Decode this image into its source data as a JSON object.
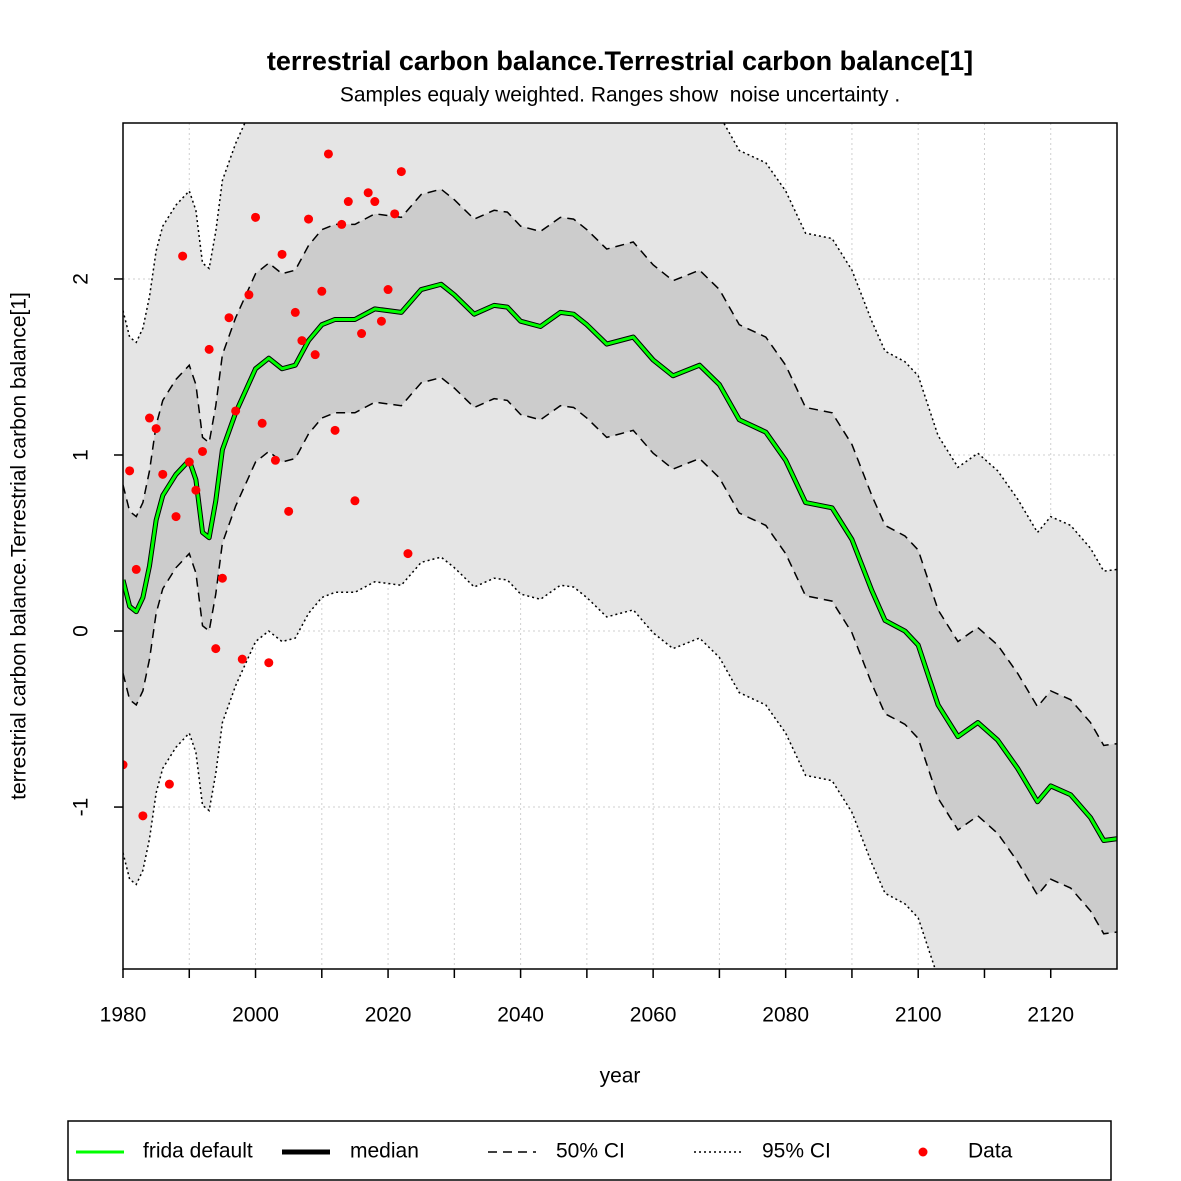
{
  "chart_data": {
    "type": "line",
    "title": "terrestrial carbon balance.Terrestrial carbon balance[1]",
    "subtitle": "Samples equaly weighted. Ranges show  noise uncertainty .",
    "xlabel": "year",
    "ylabel": "terrestrial carbon balance.Terrestrial carbon balance[1]",
    "xlim": [
      1980,
      2130
    ],
    "ylim": [
      -1.92,
      2.886
    ],
    "xticks": [
      1980,
      2000,
      2020,
      2040,
      2060,
      2080,
      2100,
      2120
    ],
    "xminor_ticks": [
      1990,
      2010,
      2030,
      2050,
      2070,
      2090,
      2110
    ],
    "yticks": [
      -1,
      0,
      1,
      2
    ],
    "grid": true,
    "x": [
      1980,
      1981,
      1982,
      1983,
      1984,
      1985,
      1986,
      1988,
      1990,
      1991,
      1992,
      1993,
      1994,
      1995,
      1997,
      2000,
      2002,
      2004,
      2006,
      2008,
      2010,
      2012,
      2015,
      2018,
      2020,
      2022,
      2025,
      2028,
      2030,
      2033,
      2036,
      2038,
      2040,
      2043,
      2046,
      2048,
      2050,
      2053,
      2057,
      2060,
      2063,
      2067,
      2070,
      2073,
      2077,
      2080,
      2083,
      2087,
      2090,
      2093,
      2095,
      2098,
      2100,
      2103,
      2106,
      2109,
      2112,
      2115,
      2118,
      2120,
      2123,
      2126,
      2128,
      2130
    ],
    "bands": [
      {
        "name": "95% CI",
        "fill": "#e5e5e5",
        "dash": "2,3",
        "upper": [
          1.82,
          1.67,
          1.64,
          1.72,
          1.9,
          2.16,
          2.3,
          2.42,
          2.5,
          2.39,
          2.09,
          2.06,
          2.27,
          2.56,
          2.77,
          3.02,
          3.08,
          3.02,
          3.04,
          3.18,
          3.27,
          3.3,
          3.3,
          3.36,
          3.35,
          3.34,
          3.47,
          3.5,
          3.44,
          3.33,
          3.38,
          3.37,
          3.29,
          3.26,
          3.34,
          3.33,
          3.27,
          3.16,
          3.2,
          3.07,
          2.98,
          3.04,
          2.93,
          2.73,
          2.66,
          2.5,
          2.26,
          2.23,
          2.05,
          1.76,
          1.59,
          1.53,
          1.45,
          1.11,
          0.93,
          1.01,
          0.91,
          0.75,
          0.56,
          0.65,
          0.6,
          0.47,
          0.34,
          0.35
        ],
        "lower": [
          -1.26,
          -1.41,
          -1.44,
          -1.36,
          -1.18,
          -0.92,
          -0.78,
          -0.66,
          -0.58,
          -0.69,
          -0.99,
          -1.02,
          -0.81,
          -0.52,
          -0.31,
          -0.06,
          0.0,
          -0.06,
          -0.04,
          0.1,
          0.19,
          0.22,
          0.22,
          0.28,
          0.27,
          0.26,
          0.39,
          0.42,
          0.36,
          0.25,
          0.3,
          0.29,
          0.21,
          0.18,
          0.26,
          0.25,
          0.19,
          0.08,
          0.12,
          -0.01,
          -0.1,
          -0.04,
          -0.15,
          -0.35,
          -0.42,
          -0.58,
          -0.82,
          -0.85,
          -1.03,
          -1.32,
          -1.49,
          -1.55,
          -1.63,
          -1.97,
          -2.15,
          -2.07,
          -2.17,
          -2.33,
          -2.52,
          -2.43,
          -2.48,
          -2.61,
          -2.74,
          -2.73
        ]
      },
      {
        "name": "50% CI",
        "fill": "#cccccc",
        "dash": "9,6",
        "upper": [
          0.83,
          0.68,
          0.65,
          0.73,
          0.91,
          1.17,
          1.31,
          1.43,
          1.51,
          1.4,
          1.1,
          1.07,
          1.28,
          1.57,
          1.78,
          2.03,
          2.09,
          2.03,
          2.05,
          2.19,
          2.28,
          2.31,
          2.31,
          2.37,
          2.36,
          2.35,
          2.48,
          2.51,
          2.45,
          2.34,
          2.39,
          2.38,
          2.3,
          2.27,
          2.35,
          2.34,
          2.28,
          2.17,
          2.21,
          2.08,
          1.99,
          2.05,
          1.94,
          1.74,
          1.67,
          1.51,
          1.27,
          1.24,
          1.06,
          0.77,
          0.6,
          0.54,
          0.46,
          0.12,
          -0.06,
          0.02,
          -0.08,
          -0.24,
          -0.43,
          -0.34,
          -0.39,
          -0.52,
          -0.65,
          -0.64
        ],
        "lower": [
          -0.24,
          -0.39,
          -0.42,
          -0.34,
          -0.16,
          0.1,
          0.24,
          0.36,
          0.44,
          0.33,
          0.03,
          0.0,
          0.21,
          0.5,
          0.71,
          0.96,
          1.02,
          0.96,
          0.98,
          1.12,
          1.21,
          1.24,
          1.24,
          1.3,
          1.29,
          1.28,
          1.41,
          1.44,
          1.38,
          1.27,
          1.32,
          1.31,
          1.23,
          1.2,
          1.28,
          1.27,
          1.21,
          1.1,
          1.14,
          1.01,
          0.92,
          0.98,
          0.87,
          0.67,
          0.6,
          0.44,
          0.2,
          0.17,
          -0.01,
          -0.3,
          -0.47,
          -0.53,
          -0.61,
          -0.95,
          -1.13,
          -1.05,
          -1.15,
          -1.31,
          -1.5,
          -1.41,
          -1.46,
          -1.59,
          -1.72,
          -1.71
        ]
      }
    ],
    "series": [
      {
        "name": "frida default",
        "color": "#00ff00",
        "width": 3,
        "values": [
          0.29,
          0.14,
          0.11,
          0.19,
          0.37,
          0.63,
          0.77,
          0.89,
          0.97,
          0.86,
          0.56,
          0.53,
          0.74,
          1.03,
          1.24,
          1.49,
          1.55,
          1.49,
          1.51,
          1.65,
          1.74,
          1.77,
          1.77,
          1.83,
          1.82,
          1.81,
          1.94,
          1.97,
          1.91,
          1.8,
          1.85,
          1.84,
          1.76,
          1.73,
          1.81,
          1.8,
          1.74,
          1.63,
          1.67,
          1.54,
          1.45,
          1.51,
          1.4,
          1.2,
          1.13,
          0.97,
          0.73,
          0.7,
          0.52,
          0.23,
          0.06,
          0.0,
          -0.08,
          -0.42,
          -0.6,
          -0.52,
          -0.62,
          -0.78,
          -0.97,
          -0.88,
          -0.93,
          -1.06,
          -1.19,
          -1.18
        ]
      },
      {
        "name": "median",
        "color": "#000000",
        "width": 5,
        "values": [
          0.29,
          0.14,
          0.11,
          0.19,
          0.37,
          0.63,
          0.77,
          0.89,
          0.97,
          0.86,
          0.56,
          0.53,
          0.74,
          1.03,
          1.24,
          1.49,
          1.55,
          1.49,
          1.51,
          1.65,
          1.74,
          1.77,
          1.77,
          1.83,
          1.82,
          1.81,
          1.94,
          1.97,
          1.91,
          1.8,
          1.85,
          1.84,
          1.76,
          1.73,
          1.81,
          1.8,
          1.74,
          1.63,
          1.67,
          1.54,
          1.45,
          1.51,
          1.4,
          1.2,
          1.13,
          0.97,
          0.73,
          0.7,
          0.52,
          0.23,
          0.06,
          0.0,
          -0.08,
          -0.42,
          -0.6,
          -0.52,
          -0.62,
          -0.78,
          -0.97,
          -0.88,
          -0.93,
          -1.06,
          -1.19,
          -1.18
        ]
      }
    ],
    "points": {
      "name": "Data",
      "color": "#ff0000",
      "x": [
        1980,
        1981,
        1982,
        1983,
        1984,
        1985,
        1986,
        1987,
        1988,
        1989,
        1990,
        1991,
        1992,
        1993,
        1994,
        1995,
        1996,
        1997,
        1998,
        1999,
        2000,
        2001,
        2002,
        2003,
        2004,
        2005,
        2006,
        2007,
        2008,
        2009,
        2010,
        2011,
        2012,
        2013,
        2014,
        2015,
        2016,
        2017,
        2018,
        2019,
        2020,
        2021,
        2022,
        2023
      ],
      "values": [
        -0.76,
        0.91,
        0.35,
        -1.05,
        1.21,
        1.15,
        0.89,
        -0.87,
        0.65,
        2.13,
        0.96,
        0.8,
        1.02,
        1.6,
        -0.1,
        0.3,
        1.78,
        1.25,
        -0.16,
        1.91,
        2.35,
        1.18,
        -0.18,
        0.97,
        2.14,
        0.68,
        1.81,
        1.65,
        2.34,
        1.57,
        1.93,
        2.71,
        1.14,
        2.31,
        2.44,
        0.74,
        1.69,
        2.49,
        2.44,
        1.76,
        1.94,
        2.37,
        2.61,
        0.44
      ]
    }
  }
}
